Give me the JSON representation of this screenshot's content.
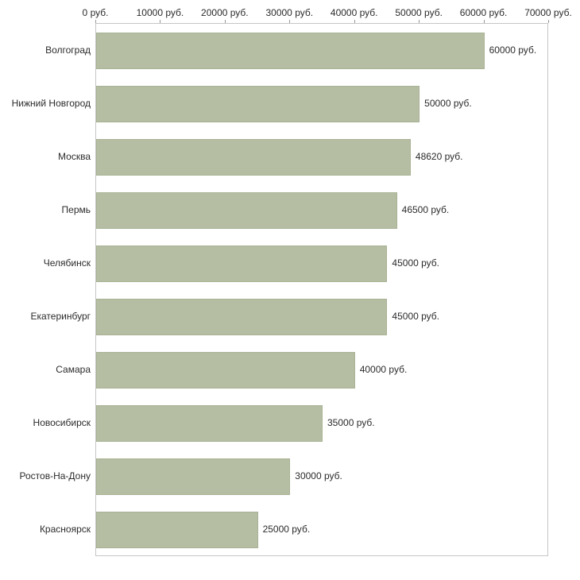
{
  "chart_data": {
    "type": "bar",
    "orientation": "horizontal",
    "title": "",
    "xlabel": "",
    "ylabel": "",
    "categories": [
      "Волгоград",
      "Нижний Новгород",
      "Москва",
      "Пермь",
      "Челябинск",
      "Екатеринбург",
      "Самара",
      "Новосибирск",
      "Ростов-На-Дону",
      "Красноярск"
    ],
    "values": [
      60000,
      50000,
      48620,
      46500,
      45000,
      45000,
      40000,
      35000,
      30000,
      25000
    ],
    "value_labels": [
      "60000 руб.",
      "50000 руб.",
      "48620 руб.",
      "46500 руб.",
      "45000 руб.",
      "45000 руб.",
      "40000 руб.",
      "35000 руб.",
      "30000 руб.",
      "25000 руб."
    ],
    "x_ticks": [
      0,
      10000,
      20000,
      30000,
      40000,
      50000,
      60000,
      70000
    ],
    "x_tick_labels": [
      "0 руб.",
      "10000 руб.",
      "20000 руб.",
      "30000 руб.",
      "40000 руб.",
      "50000 руб.",
      "60000 руб.",
      "70000 руб."
    ],
    "xlim": [
      0,
      70000
    ],
    "grid": false,
    "legend": false,
    "bar_color": "#b5bda3",
    "bar_border_color": "#a9b294",
    "axis_color": "#c6c6c6",
    "text_color": "#2b2b2b",
    "background_color": "#ffffff"
  }
}
